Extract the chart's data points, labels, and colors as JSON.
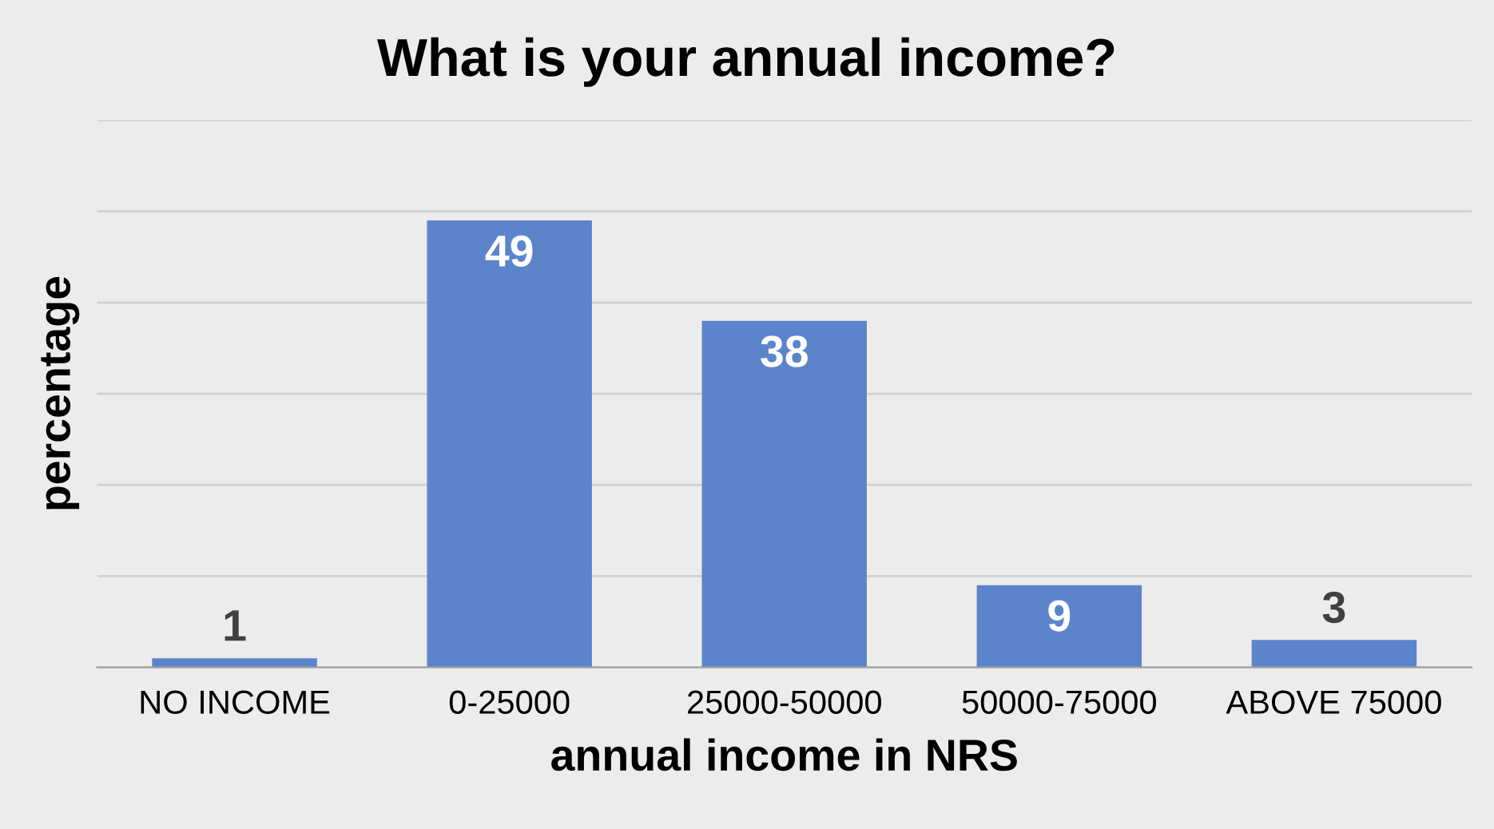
{
  "chart_data": {
    "type": "bar",
    "title": "What is your annual income?",
    "xlabel": "annual income in NRS",
    "ylabel": "percentage",
    "categories": [
      "NO INCOME",
      "0-25000",
      "25000-50000",
      "50000-75000",
      "ABOVE 75000"
    ],
    "values": [
      1,
      49,
      38,
      9,
      3
    ],
    "color": "#5b84cb",
    "ylim": [
      0,
      60
    ],
    "yticks": [
      {
        "value": 0,
        "label": null
      },
      {
        "value": 10,
        "label": null
      },
      {
        "value": 20,
        "label": null
      },
      {
        "value": 30,
        "label": null
      },
      {
        "value": 40,
        "label": null
      },
      {
        "value": 50,
        "label": null
      },
      {
        "value": 60,
        "label": null
      }
    ],
    "grid": "y",
    "tick_labels": "x",
    "data_labels": true
  }
}
